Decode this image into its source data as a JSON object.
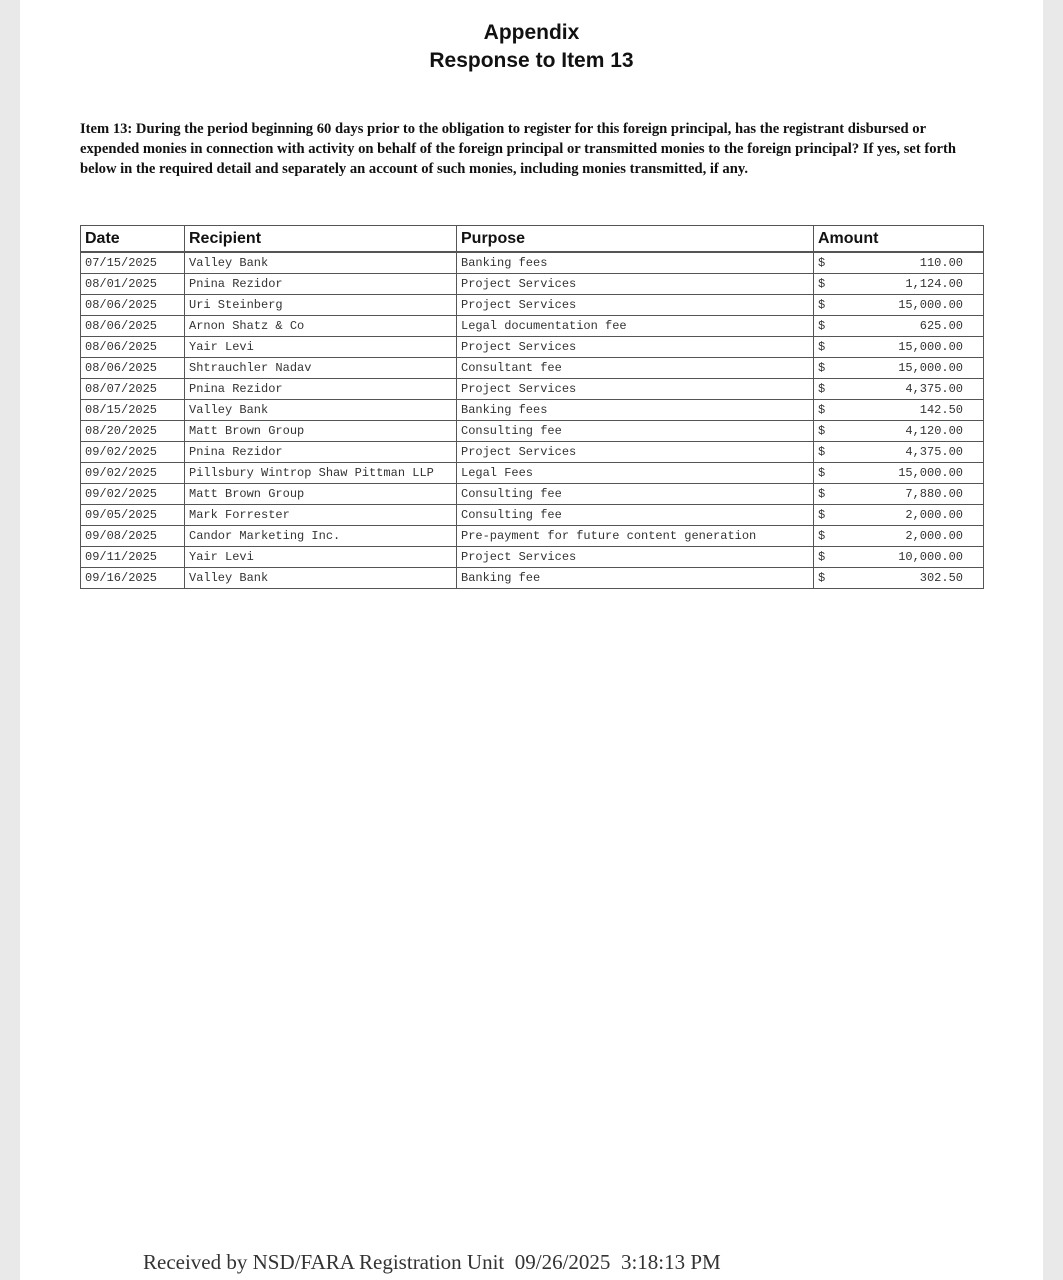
{
  "header": {
    "title": "Appendix",
    "subtitle": "Response to Item 13"
  },
  "item_text": "Item 13: During the period beginning 60 days prior to the obligation to register for this foreign principal, has the registrant disbursed or expended monies in connection with activity on behalf of the foreign principal or transmitted monies to the foreign principal? If yes, set forth below in the required detail and separately an account of such monies, including monies transmitted, if any.",
  "table": {
    "columns": [
      "Date",
      "Recipient",
      "Purpose",
      "Amount"
    ],
    "currency_symbol": "$",
    "rows": [
      {
        "date": "07/15/2025",
        "recipient": "Valley Bank",
        "purpose": "Banking fees",
        "amount": "110.00"
      },
      {
        "date": "08/01/2025",
        "recipient": "Pnina Rezidor",
        "purpose": "Project Services",
        "amount": "1,124.00"
      },
      {
        "date": "08/06/2025",
        "recipient": "Uri Steinberg",
        "purpose": "Project Services",
        "amount": "15,000.00"
      },
      {
        "date": "08/06/2025",
        "recipient": "Arnon Shatz & Co",
        "purpose": "Legal documentation fee",
        "amount": "625.00"
      },
      {
        "date": "08/06/2025",
        "recipient": "Yair Levi",
        "purpose": "Project Services",
        "amount": "15,000.00"
      },
      {
        "date": "08/06/2025",
        "recipient": "Shtrauchler Nadav",
        "purpose": "Consultant fee",
        "amount": "15,000.00"
      },
      {
        "date": "08/07/2025",
        "recipient": "Pnina Rezidor",
        "purpose": "Project Services",
        "amount": "4,375.00"
      },
      {
        "date": "08/15/2025",
        "recipient": "Valley Bank",
        "purpose": "Banking fees",
        "amount": "142.50"
      },
      {
        "date": "08/20/2025",
        "recipient": "Matt Brown Group",
        "purpose": "Consulting fee",
        "amount": "4,120.00"
      },
      {
        "date": "09/02/2025",
        "recipient": "Pnina Rezidor",
        "purpose": "Project Services",
        "amount": "4,375.00"
      },
      {
        "date": "09/02/2025",
        "recipient": "Pillsbury Wintrop Shaw Pittman LLP",
        "purpose": "Legal Fees",
        "amount": "15,000.00"
      },
      {
        "date": "09/02/2025",
        "recipient": "Matt Brown Group",
        "purpose": "Consulting fee",
        "amount": "7,880.00"
      },
      {
        "date": "09/05/2025",
        "recipient": "Mark Forrester",
        "purpose": "Consulting fee",
        "amount": "2,000.00"
      },
      {
        "date": "09/08/2025",
        "recipient": "Candor Marketing Inc.",
        "purpose": "Pre-payment for future content generation",
        "amount": "2,000.00"
      },
      {
        "date": "09/11/2025",
        "recipient": "Yair Levi",
        "purpose": "Project Services",
        "amount": "10,000.00"
      },
      {
        "date": "09/16/2025",
        "recipient": "Valley Bank",
        "purpose": "Banking fee",
        "amount": "302.50"
      }
    ]
  },
  "footer": {
    "text": "Received by NSD/FARA Registration Unit",
    "date": "09/26/2025",
    "time": "3:18:13 PM"
  }
}
